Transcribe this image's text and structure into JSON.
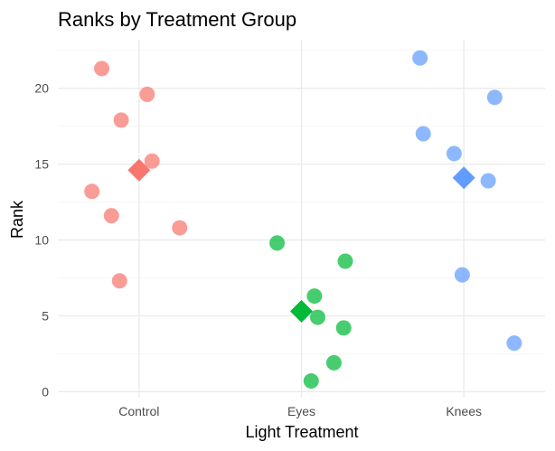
{
  "chart_data": {
    "type": "scatter",
    "title": "Ranks by Treatment Group",
    "xlabel": "Light Treatment",
    "ylabel": "Rank",
    "categories": [
      "Control",
      "Eyes",
      "Knees"
    ],
    "ylim": [
      -0.4,
      23.2
    ],
    "y_ticks": [
      0,
      5,
      10,
      15,
      20
    ],
    "grid": true,
    "legend": "none",
    "series": [
      {
        "category": "Control",
        "color": "#F8766D",
        "points": [
          {
            "x": -0.23,
            "y": 21.3
          },
          {
            "x": 0.05,
            "y": 19.6
          },
          {
            "x": -0.11,
            "y": 17.9
          },
          {
            "x": 0.08,
            "y": 15.2
          },
          {
            "x": -0.29,
            "y": 13.2
          },
          {
            "x": -0.17,
            "y": 11.6
          },
          {
            "x": 0.25,
            "y": 10.8
          },
          {
            "x": -0.12,
            "y": 7.3
          }
        ],
        "mean": 14.6
      },
      {
        "category": "Eyes",
        "color": "#00BA38",
        "points": [
          {
            "x": -0.15,
            "y": 9.8
          },
          {
            "x": 0.27,
            "y": 8.6
          },
          {
            "x": 0.08,
            "y": 6.3
          },
          {
            "x": 0.1,
            "y": 4.9
          },
          {
            "x": 0.26,
            "y": 4.2
          },
          {
            "x": 0.2,
            "y": 1.9
          },
          {
            "x": 0.06,
            "y": 0.7
          }
        ],
        "mean": 5.3
      },
      {
        "category": "Knees",
        "color": "#619CFF",
        "points": [
          {
            "x": -0.27,
            "y": 22.0
          },
          {
            "x": 0.19,
            "y": 19.4
          },
          {
            "x": -0.25,
            "y": 17.0
          },
          {
            "x": -0.06,
            "y": 15.7
          },
          {
            "x": 0.15,
            "y": 13.9
          },
          {
            "x": -0.01,
            "y": 7.7
          },
          {
            "x": 0.31,
            "y": 3.2
          }
        ],
        "mean": 14.1
      }
    ]
  }
}
